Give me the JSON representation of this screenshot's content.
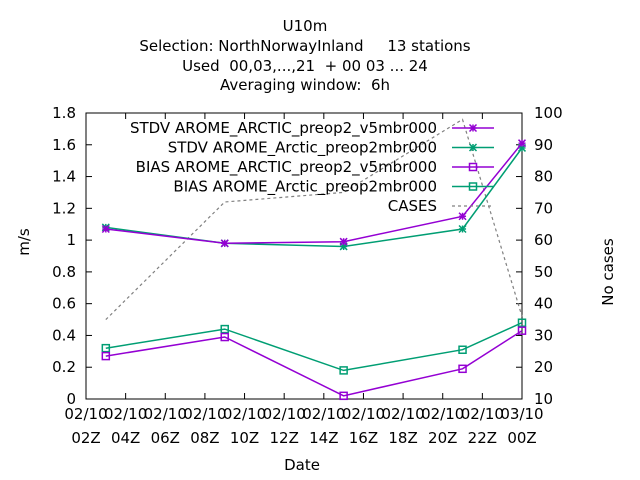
{
  "chart_data": {
    "type": "line",
    "title_lines": [
      "U10m",
      "Selection: NorthNorwayInland     13 stations",
      "Used  00,03,...,21  + 00 03 ... 24",
      "Averaging window:  6h"
    ],
    "xlabel": "Date",
    "ylabel": "m/s",
    "y2label": "No cases",
    "xlim": [
      0,
      22
    ],
    "ylim": [
      0,
      1.8
    ],
    "y2lim": [
      10,
      100
    ],
    "x_ticks": [
      {
        "x": 0,
        "top": "02/10",
        "bottom": "02Z"
      },
      {
        "x": 2,
        "top": "02/10",
        "bottom": "04Z"
      },
      {
        "x": 4,
        "top": "02/10",
        "bottom": "06Z"
      },
      {
        "x": 6,
        "top": "02/10",
        "bottom": "08Z"
      },
      {
        "x": 8,
        "top": "02/10",
        "bottom": "10Z"
      },
      {
        "x": 10,
        "top": "02/10",
        "bottom": "12Z"
      },
      {
        "x": 12,
        "top": "02/10",
        "bottom": "14Z"
      },
      {
        "x": 14,
        "top": "02/10",
        "bottom": "16Z"
      },
      {
        "x": 16,
        "top": "02/10",
        "bottom": "18Z"
      },
      {
        "x": 18,
        "top": "02/10",
        "bottom": "20Z"
      },
      {
        "x": 20,
        "top": "02/10",
        "bottom": "22Z"
      },
      {
        "x": 22,
        "top": "03/10",
        "bottom": "00Z"
      }
    ],
    "y_ticks": [
      "0",
      "0.2",
      "0.4",
      "0.6",
      "0.8",
      "1",
      "1.2",
      "1.4",
      "1.6",
      "1.8"
    ],
    "y2_ticks": [
      "10",
      "20",
      "30",
      "40",
      "50",
      "60",
      "70",
      "80",
      "90",
      "100"
    ],
    "legend_position": "top-right",
    "series": [
      {
        "name": "STDV AROME_ARCTIC_preop2_v5mbr000",
        "marker": "x",
        "color": "#9400d3",
        "axis": "y",
        "x": [
          1,
          7,
          13,
          19,
          22
        ],
        "values": [
          1.07,
          0.98,
          0.99,
          1.15,
          1.61
        ]
      },
      {
        "name": "STDV AROME_Arctic_preop2mbr000",
        "marker": "x",
        "color": "#009e73",
        "axis": "y",
        "x": [
          1,
          7,
          13,
          19,
          22
        ],
        "values": [
          1.08,
          0.98,
          0.96,
          1.07,
          1.58
        ]
      },
      {
        "name": "BIAS AROME_ARCTIC_preop2_v5mbr000",
        "marker": "square",
        "color": "#9400d3",
        "axis": "y",
        "x": [
          1,
          7,
          13,
          19,
          22
        ],
        "values": [
          0.27,
          0.39,
          0.02,
          0.19,
          0.43
        ]
      },
      {
        "name": "BIAS AROME_Arctic_preop2mbr000",
        "marker": "square",
        "color": "#009e73",
        "axis": "y",
        "x": [
          1,
          7,
          13,
          19,
          22
        ],
        "values": [
          0.32,
          0.44,
          0.18,
          0.31,
          0.48
        ]
      },
      {
        "name": "CASES",
        "marker": "none",
        "color": "#808080",
        "axis": "y2",
        "dashed": true,
        "x": [
          1,
          7,
          13,
          19,
          22
        ],
        "values": [
          35,
          72,
          75,
          98,
          36
        ]
      }
    ]
  }
}
